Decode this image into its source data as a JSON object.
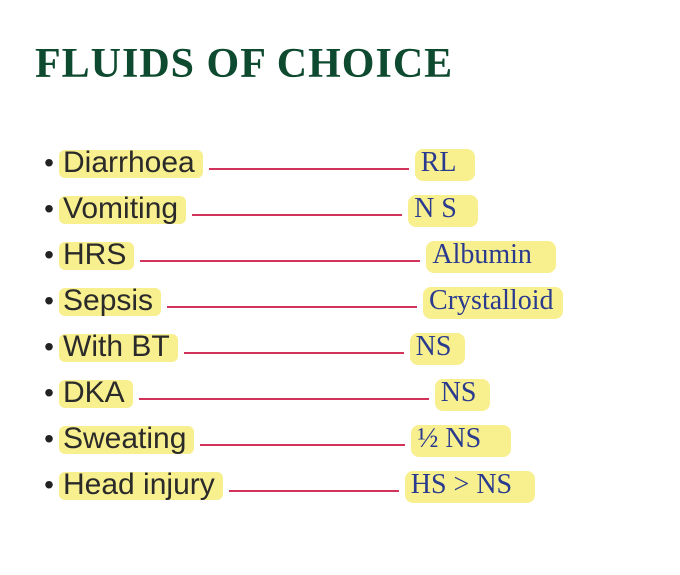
{
  "title": {
    "text": "FLUIDS OF CHOICE",
    "color": "#0e4a2f",
    "fontsize": 42
  },
  "highlight_color": "#f8ef8f",
  "connector_color": "#d3325a",
  "ink_color": "#2a3b8f",
  "background_color": "#ffffff",
  "rows": [
    {
      "condition": "Diarrhoea",
      "answer": "RL",
      "ans_hl_width": 60,
      "connector_len": 200
    },
    {
      "condition": "Vomiting",
      "answer": "N S",
      "ans_hl_width": 70,
      "connector_len": 210
    },
    {
      "condition": "HRS",
      "answer": "Albumin",
      "ans_hl_width": 130,
      "connector_len": 280
    },
    {
      "condition": "Sepsis",
      "answer": "Crystalloid",
      "ans_hl_width": 140,
      "connector_len": 250
    },
    {
      "condition": "With BT",
      "answer": "NS",
      "ans_hl_width": 55,
      "connector_len": 220
    },
    {
      "condition": "DKA",
      "answer": "NS",
      "ans_hl_width": 55,
      "connector_len": 290
    },
    {
      "condition": "Sweating",
      "answer": "½ NS",
      "ans_hl_width": 100,
      "connector_len": 205
    },
    {
      "condition": "Head injury",
      "answer": "HS > NS",
      "ans_hl_width": 130,
      "connector_len": 170
    }
  ]
}
